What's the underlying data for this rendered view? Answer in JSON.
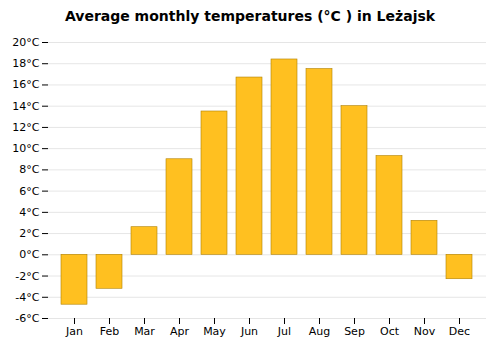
{
  "chart_data": {
    "type": "bar",
    "title": "Average monthly temperatures (°C ) in Leżajsk",
    "categories": [
      "Jan",
      "Feb",
      "Mar",
      "Apr",
      "May",
      "Jun",
      "Jul",
      "Aug",
      "Sep",
      "Oct",
      "Nov",
      "Dec"
    ],
    "values": [
      -4.7,
      -3.2,
      2.6,
      9.0,
      13.5,
      16.7,
      18.4,
      17.5,
      14.0,
      9.3,
      3.2,
      -2.3
    ],
    "color": "#FFC020",
    "ylim": [
      -6,
      20
    ],
    "yticks": [
      {
        "value": -6,
        "label": "-6°C"
      },
      {
        "value": -4,
        "label": "-4°C"
      },
      {
        "value": -2,
        "label": "-2°C"
      },
      {
        "value": 0,
        "label": "0°C"
      },
      {
        "value": 2,
        "label": "2°C"
      },
      {
        "value": 4,
        "label": "4°C"
      },
      {
        "value": 6,
        "label": "6°C"
      },
      {
        "value": 8,
        "label": "8°C"
      },
      {
        "value": 10,
        "label": "10°C"
      },
      {
        "value": 12,
        "label": "12°C"
      },
      {
        "value": 14,
        "label": "14°C"
      },
      {
        "value": 16,
        "label": "16°C"
      },
      {
        "value": 18,
        "label": "18°C"
      },
      {
        "value": 20,
        "label": "20°C"
      }
    ],
    "grid": true
  }
}
